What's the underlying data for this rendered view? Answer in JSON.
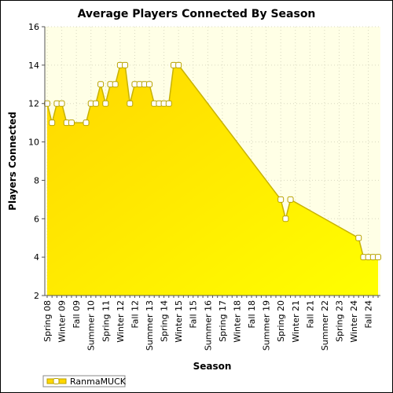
{
  "chart_data": {
    "type": "area",
    "title": "Average Players Connected By Season",
    "xlabel": "Season",
    "ylabel": "Players Connected",
    "ylim": [
      2,
      16
    ],
    "y_ticks": [
      2,
      4,
      6,
      8,
      10,
      12,
      14,
      16
    ],
    "grid": true,
    "legend_position": "bottom-left",
    "x_tick_labels": [
      "Spring 08",
      "Winter 09",
      "Fall 09",
      "Summer 10",
      "Spring 11",
      "Winter 12",
      "Fall 12",
      "Summer 13",
      "Spring 14",
      "Winter 15",
      "Fall 15",
      "Summer 16",
      "Spring 17",
      "Winter 18",
      "Fall 18",
      "Summer 19",
      "Spring 20",
      "Winter 21",
      "Fall 21",
      "Summer 22",
      "Spring 23",
      "Winter 24",
      "Fall 24"
    ],
    "x_tick_label_index": [
      0,
      3,
      6,
      9,
      12,
      15,
      18,
      21,
      24,
      27,
      30,
      33,
      36,
      39,
      42,
      45,
      48,
      51,
      54,
      57,
      60,
      63,
      66
    ],
    "x_count": 69,
    "points": [
      [
        0,
        12
      ],
      [
        1,
        11
      ],
      [
        2,
        12
      ],
      [
        3,
        12
      ],
      [
        4,
        11
      ],
      [
        5,
        11
      ],
      [
        8,
        11
      ],
      [
        9,
        12
      ],
      [
        10,
        12
      ],
      [
        11,
        13
      ],
      [
        12,
        12
      ],
      [
        13,
        13
      ],
      [
        14,
        13
      ],
      [
        15,
        14
      ],
      [
        16,
        14
      ],
      [
        17,
        12
      ],
      [
        18,
        13
      ],
      [
        19,
        13
      ],
      [
        20,
        13
      ],
      [
        21,
        13
      ],
      [
        22,
        12
      ],
      [
        23,
        12
      ],
      [
        24,
        12
      ],
      [
        25,
        12
      ],
      [
        26,
        14
      ],
      [
        27,
        14
      ],
      [
        48,
        7
      ],
      [
        49,
        6
      ],
      [
        50,
        7
      ],
      [
        64,
        5
      ],
      [
        65,
        4
      ],
      [
        66,
        4
      ],
      [
        67,
        4
      ],
      [
        68,
        4
      ]
    ],
    "series": [
      {
        "name": "RanmaMUCK",
        "color": "#ffd700"
      }
    ],
    "colors": {
      "area_top": "#ffd700",
      "area_bottom": "#ffff00",
      "line": "#c8b200",
      "plot_bg": "#ffffe6",
      "marker_fill": "#ffffff",
      "marker_stroke": "#b8a200"
    }
  }
}
